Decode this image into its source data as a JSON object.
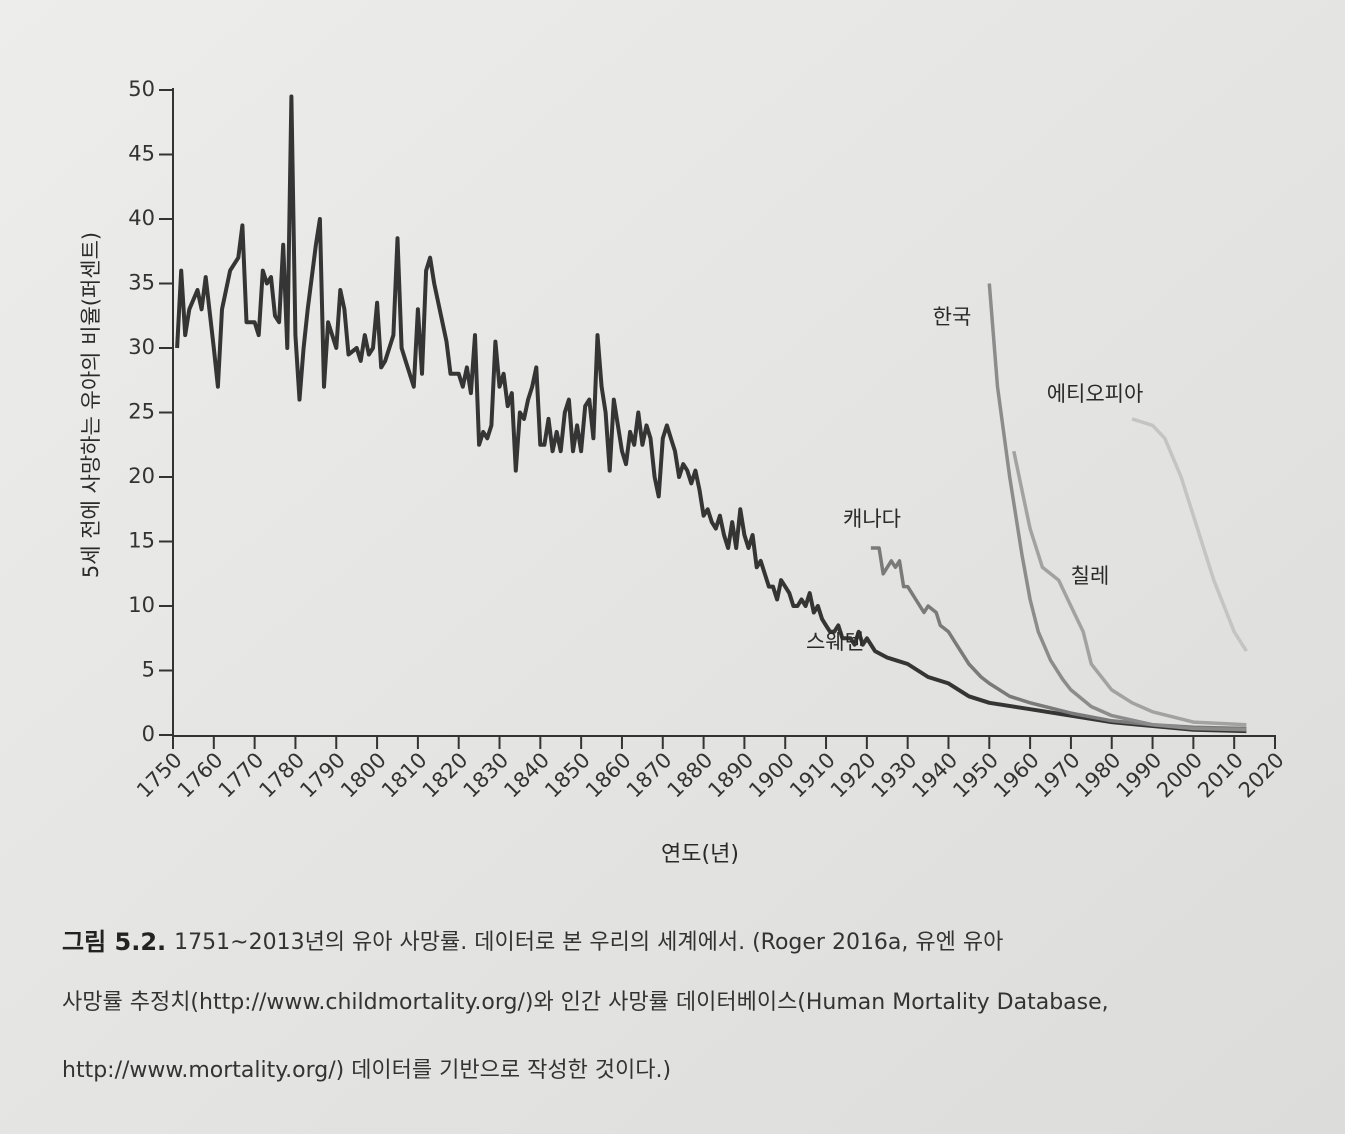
{
  "chart_data": {
    "type": "line",
    "y_label": "5세 전에 사망하는 유아의 비율(퍼센트)",
    "x_label": "연도(년)",
    "xlim": [
      1750,
      2020
    ],
    "xticks": [
      1750,
      1760,
      1770,
      1780,
      1790,
      1800,
      1810,
      1820,
      1830,
      1840,
      1850,
      1860,
      1870,
      1880,
      1890,
      1900,
      1910,
      1920,
      1930,
      1940,
      1950,
      1960,
      1970,
      1980,
      1990,
      2000,
      2010,
      2020
    ],
    "ylim": [
      0,
      50
    ],
    "yticks": [
      0,
      5,
      10,
      15,
      20,
      25,
      30,
      35,
      40,
      45,
      50
    ],
    "series": [
      {
        "name": "스웨덴",
        "color": "#353535",
        "x": [
          1751,
          1752,
          1753,
          1754,
          1756,
          1757,
          1758,
          1760,
          1761,
          1762,
          1764,
          1766,
          1767,
          1768,
          1770,
          1771,
          1772,
          1773,
          1774,
          1775,
          1776,
          1777,
          1778,
          1779,
          1780,
          1781,
          1782,
          1783,
          1785,
          1786,
          1787,
          1788,
          1790,
          1791,
          1792,
          1793,
          1795,
          1796,
          1797,
          1798,
          1799,
          1800,
          1801,
          1802,
          1803,
          1804,
          1805,
          1806,
          1807,
          1808,
          1809,
          1810,
          1811,
          1812,
          1813,
          1814,
          1816,
          1817,
          1818,
          1820,
          1821,
          1822,
          1823,
          1824,
          1825,
          1826,
          1827,
          1828,
          1829,
          1830,
          1831,
          1832,
          1833,
          1834,
          1835,
          1836,
          1837,
          1838,
          1839,
          1840,
          1841,
          1842,
          1843,
          1844,
          1845,
          1846,
          1847,
          1848,
          1849,
          1850,
          1851,
          1852,
          1853,
          1854,
          1855,
          1856,
          1857,
          1858,
          1860,
          1861,
          1862,
          1863,
          1864,
          1865,
          1866,
          1867,
          1868,
          1869,
          1870,
          1871,
          1872,
          1873,
          1874,
          1875,
          1876,
          1877,
          1878,
          1879,
          1880,
          1881,
          1882,
          1883,
          1884,
          1885,
          1886,
          1887,
          1888,
          1889,
          1890,
          1891,
          1892,
          1893,
          1894,
          1895,
          1896,
          1897,
          1898,
          1899,
          1900,
          1901,
          1902,
          1903,
          1904,
          1905,
          1906,
          1907,
          1908,
          1909,
          1910,
          1911,
          1912,
          1913,
          1914,
          1915,
          1916,
          1917,
          1918,
          1919,
          1920,
          1922,
          1925,
          1930,
          1935,
          1940,
          1945,
          1950,
          1960,
          1970,
          1980,
          1990,
          2000,
          2013
        ],
        "values": [
          30,
          36,
          31,
          33,
          34.5,
          33,
          35.5,
          30,
          27,
          33,
          36,
          37,
          39.5,
          32,
          32,
          31,
          36,
          35,
          35.5,
          32.5,
          32,
          38,
          30,
          49.5,
          31,
          26,
          30,
          33,
          38,
          40,
          27,
          32,
          30,
          34.5,
          33,
          29.5,
          30,
          29,
          31,
          29.5,
          30,
          33.5,
          28.5,
          29,
          30,
          31,
          38.5,
          30,
          29,
          28,
          27,
          33,
          28,
          36,
          37,
          35,
          32,
          30.5,
          28,
          28,
          27,
          28.5,
          26.5,
          31,
          22.5,
          23.5,
          23,
          24,
          30.5,
          27,
          28,
          25.5,
          26.5,
          20.5,
          25,
          24.5,
          26,
          27,
          28.5,
          22.5,
          22.5,
          24.5,
          22,
          23.5,
          22,
          25,
          26,
          22,
          24,
          22,
          25.5,
          26,
          23,
          31,
          27,
          25,
          20.5,
          26,
          22,
          21,
          23.5,
          22.5,
          25,
          22.5,
          24,
          23,
          20,
          18.5,
          23,
          24,
          23,
          22,
          20,
          21,
          20.5,
          19.5,
          20.5,
          19,
          17,
          17.5,
          16.5,
          16,
          17,
          15.5,
          14.5,
          16.5,
          14.5,
          17.5,
          15.5,
          14.5,
          15.5,
          13,
          13.5,
          12.5,
          11.5,
          11.5,
          10.5,
          12,
          11.5,
          11,
          10,
          10,
          10.5,
          10,
          11,
          9.5,
          10,
          9,
          8.5,
          8,
          8,
          8.5,
          7.5,
          7.5,
          7.5,
          7,
          8,
          7,
          7.5,
          6.5,
          6,
          5.5,
          4.5,
          4,
          3,
          2.5,
          2,
          1.5,
          1,
          0.7,
          0.4,
          0.3
        ]
      },
      {
        "name": "캐나다",
        "color": "#7a7a7a",
        "x": [
          1921,
          1923,
          1924,
          1926,
          1927,
          1928,
          1929,
          1930,
          1932,
          1934,
          1935,
          1937,
          1938,
          1940,
          1942,
          1945,
          1948,
          1950,
          1955,
          1960,
          1970,
          1980,
          1990,
          2000,
          2013
        ],
        "values": [
          14.5,
          14.5,
          12.5,
          13.5,
          13,
          13.5,
          11.5,
          11.5,
          10.5,
          9.5,
          10,
          9.5,
          8.5,
          8,
          7,
          5.5,
          4.5,
          4,
          3,
          2.5,
          1.7,
          1.1,
          0.8,
          0.6,
          0.5
        ]
      },
      {
        "name": "한국",
        "color": "#8c8c8c",
        "x": [
          1950,
          1952,
          1955,
          1958,
          1960,
          1962,
          1965,
          1968,
          1970,
          1975,
          1980,
          1990,
          2000,
          2013
        ],
        "values": [
          35,
          27,
          20,
          14,
          10.5,
          8,
          5.8,
          4.3,
          3.5,
          2.2,
          1.5,
          0.8,
          0.5,
          0.4
        ]
      },
      {
        "name": "에티오피아",
        "color": "#c4c4c4",
        "x": [
          1985,
          1990,
          1993,
          1997,
          2000,
          2005,
          2010,
          2013
        ],
        "values": [
          24.5,
          24,
          23,
          20,
          17,
          12,
          8,
          6.5
        ]
      },
      {
        "name": "칠레",
        "color": "#a2a2a2",
        "x": [
          1956,
          1958,
          1960,
          1963,
          1967,
          1970,
          1973,
          1975,
          1980,
          1985,
          1990,
          2000,
          2013
        ],
        "values": [
          22,
          19,
          16,
          13,
          12,
          10,
          8,
          5.5,
          3.5,
          2.5,
          1.8,
          1,
          0.8
        ]
      }
    ]
  },
  "caption": {
    "label": "그림 5.2.",
    "lines": [
      "1751~2013년의 유아 사망률. 데이터로 본 우리의 세계에서. (Roger 2016a, 유엔 유아",
      "사망률 추정치(http://www.childmortality.org/)와 인간 사망률 데이터베이스(Human Mortality Database,",
      "http://www.mortality.org/) 데이터를 기반으로 작성한 것이다.)"
    ]
  }
}
